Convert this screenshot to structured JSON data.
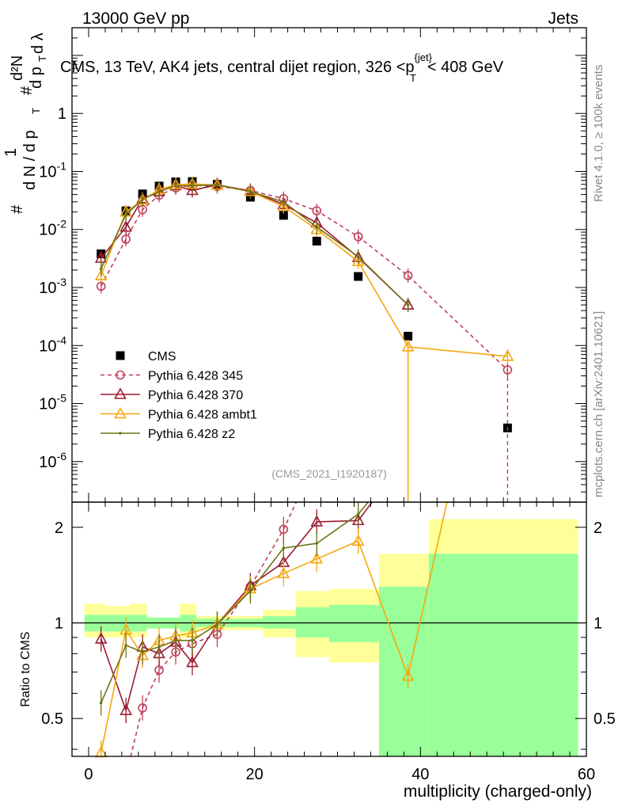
{
  "header": {
    "left": "13000 GeV pp",
    "right": "Jets"
  },
  "title": {
    "prefix": "CMS, 13 TeV, AK4 jets, central dijet region, 326 <",
    "p": "p",
    "sup": "{jet}",
    "sub": "T",
    "suffix": "< 408 GeV"
  },
  "side_labels": {
    "rivet": "Rivet 4.1.0, ≥ 100k events",
    "mcplots": "mcplots.cern.ch [arXiv:2401.10621]"
  },
  "watermark": "(CMS_2021_I1920187)",
  "axes": {
    "xlabel": "multiplicity (charged-only)",
    "ratio_ylabel": "Ratio to CMS",
    "ylabel_parts": {
      "hash": "#",
      "one": "1",
      "dN": "d N / d p",
      "T": "T",
      "num": "d²N",
      "den": "d p",
      "dlambda": "d λ"
    },
    "x_ticks": [
      "0",
      "20",
      "40",
      "60"
    ],
    "y_ticks_main": [
      "10^{-6}",
      "10^{-5}",
      "10^{-4}",
      "10^{-3}",
      "10^{-2}",
      "10^{-1}",
      "1"
    ],
    "y_ticks_ratio": [
      "0.5",
      "1",
      "2"
    ]
  },
  "legend": [
    {
      "label": "CMS",
      "color": "#000000",
      "marker": "square"
    },
    {
      "label": "Pythia 6.428 345",
      "color": "#c0405a",
      "marker": "circle",
      "dashed": true
    },
    {
      "label": "Pythia 6.428 370",
      "color": "#9b1b30",
      "marker": "triangle"
    },
    {
      "label": "Pythia 6.428 ambt1",
      "color": "#f5a70f",
      "marker": "triangle"
    },
    {
      "label": "Pythia 6.428 z2",
      "color": "#6e7416",
      "marker": "dot"
    }
  ],
  "chart_data": {
    "type": "line",
    "title": "CMS, 13 TeV, AK4 jets, central dijet region, 326 < pT(jet) < 408 GeV",
    "xlabel": "multiplicity (charged-only)",
    "ylabel": "1/(dN/dpT) d²N/(dpT dλ)",
    "xlim": [
      -2,
      60
    ],
    "ylim_main": [
      2e-07,
      30
    ],
    "ylim_ratio": [
      0.38,
      2.4
    ],
    "y_scale": "log",
    "x": [
      1.5,
      4.5,
      6.5,
      8.5,
      10.5,
      12.5,
      15.5,
      19.5,
      23.5,
      27.5,
      32.5,
      38.5,
      50.5
    ],
    "series": [
      {
        "name": "CMS",
        "values": [
          0.0038,
          0.021,
          0.041,
          0.056,
          0.066,
          0.067,
          0.06,
          0.036,
          0.0175,
          0.0063,
          0.00155,
          0.000145,
          3.8e-06
        ]
      },
      {
        "name": "Pythia 6.428 345",
        "values": [
          0.00105,
          0.0068,
          0.022,
          0.039,
          0.052,
          0.058,
          0.055,
          0.047,
          0.034,
          0.021,
          0.0075,
          0.0016,
          3.8e-05
        ]
      },
      {
        "name": "Pythia 6.428 370",
        "values": [
          0.0032,
          0.011,
          0.034,
          0.045,
          0.057,
          0.047,
          0.059,
          0.046,
          0.027,
          0.013,
          0.0033,
          0.0005,
          null
        ]
      },
      {
        "name": "Pythia 6.428 ambt1",
        "values": [
          0.0016,
          0.02,
          0.032,
          0.049,
          0.059,
          0.061,
          0.058,
          0.045,
          0.025,
          0.01,
          0.0028,
          9.5e-05,
          6.5e-05
        ]
      },
      {
        "name": "Pythia 6.428 z2",
        "values": [
          0.0021,
          0.018,
          0.033,
          0.045,
          0.057,
          0.057,
          0.059,
          0.045,
          0.03,
          0.011,
          0.0034,
          0.0005,
          null
        ]
      }
    ],
    "ratio": {
      "band_edges": [
        -0.5,
        2,
        5,
        7,
        9,
        11,
        13,
        17,
        21,
        25,
        29,
        35,
        41,
        59
      ],
      "stat_lo": [
        0.94,
        0.94,
        0.94,
        0.96,
        0.96,
        0.94,
        0.97,
        0.97,
        0.96,
        0.9,
        0.87,
        0.37,
        0.37
      ],
      "stat_hi": [
        1.06,
        1.06,
        1.06,
        1.04,
        1.04,
        1.06,
        1.03,
        1.03,
        1.05,
        1.12,
        1.14,
        1.3,
        1.65
      ],
      "tot_lo": [
        0.9,
        0.9,
        0.9,
        0.96,
        0.96,
        0.9,
        0.95,
        0.95,
        0.9,
        0.78,
        0.75,
        0.37,
        0.37
      ],
      "tot_hi": [
        1.15,
        1.13,
        1.15,
        1.04,
        1.04,
        1.15,
        1.05,
        1.05,
        1.1,
        1.26,
        1.28,
        1.65,
        2.12
      ],
      "series": [
        {
          "name": "Pythia 6.428 345",
          "values": [
            0.27,
            0.33,
            0.54,
            0.71,
            0.81,
            0.86,
            0.92,
            1.3,
            1.97,
            3.3,
            4.8,
            null,
            null
          ]
        },
        {
          "name": "Pythia 6.428 370",
          "values": [
            0.89,
            0.53,
            0.84,
            0.8,
            0.87,
            0.75,
            0.99,
            1.31,
            1.55,
            2.08,
            2.1,
            3.4,
            null
          ]
        },
        {
          "name": "Pythia 6.428 ambt1",
          "values": [
            0.39,
            0.95,
            0.79,
            0.88,
            0.91,
            0.93,
            0.99,
            1.28,
            1.43,
            1.59,
            1.81,
            0.68,
            17.1
          ]
        },
        {
          "name": "Pythia 6.428 z2",
          "values": [
            0.56,
            0.85,
            0.81,
            0.84,
            0.88,
            0.88,
            0.99,
            1.26,
            1.72,
            1.78,
            2.2,
            3.4,
            null
          ]
        }
      ]
    }
  }
}
